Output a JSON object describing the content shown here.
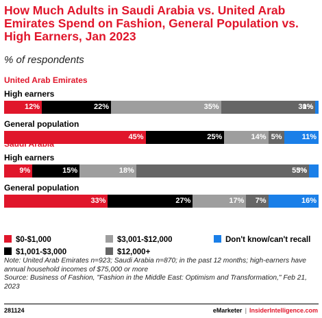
{
  "chart_data": {
    "type": "bar",
    "orientation": "horizontal",
    "stacked": true,
    "title": "How Much Adults in Saudi Arabia vs. United Arab Emirates Spend on Fashion, General Population vs. High Earners, Jan 2023",
    "subtitle": "% of respondents",
    "legend_position": "bottom",
    "categories": [
      "$0-$1,000",
      "$1,001-$3,000",
      "$3,001-$12,000",
      "$12,000+",
      "Don't know/can't recall"
    ],
    "colors": [
      "#e0162b",
      "#000000",
      "#9e9e9e",
      "#666666",
      "#1a7fe8"
    ],
    "groups": [
      {
        "name": "United Arab Emirates",
        "rows": [
          {
            "label": "High earners",
            "values": [
              12,
              22,
              35,
              30,
              1
            ]
          },
          {
            "label": "General population",
            "values": [
              45,
              25,
              14,
              5,
              11
            ]
          }
        ]
      },
      {
        "name": "Saudi Arabia",
        "rows": [
          {
            "label": "High earners",
            "values": [
              9,
              15,
              18,
              55,
              3
            ]
          },
          {
            "label": "General population",
            "values": [
              33,
              27,
              17,
              7,
              16
            ]
          }
        ]
      }
    ]
  },
  "note": "Note: United Arab Emirates n=923; Saudi Arabia n=870; in the past 12 months; high-earners have annual household incomes of $75,000 or more",
  "source": "Source: Business of Fashion, \"Fashion in the Middle East: Optimism and Transformation,\" Feb 21, 2023",
  "footer": {
    "chart_id": "281124",
    "brand": "eMarketer",
    "separator": "|",
    "site": "InsiderIntelligence.com"
  }
}
